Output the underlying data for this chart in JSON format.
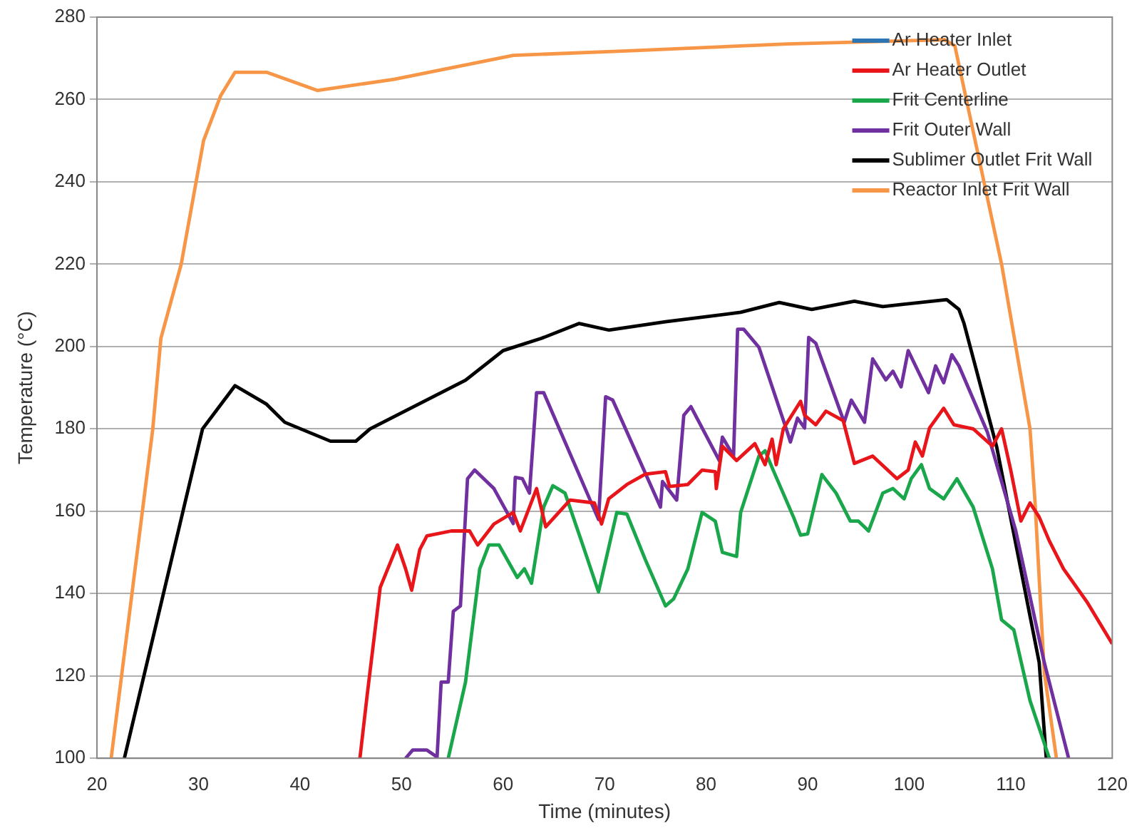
{
  "chart_data": {
    "type": "line",
    "xlabel": "Time (minutes)",
    "ylabel": "Temperature (°C)",
    "xlim": [
      20,
      120
    ],
    "xticks": [
      20,
      30,
      40,
      50,
      60,
      70,
      80,
      90,
      100,
      110,
      120
    ],
    "ylim": [
      100,
      280
    ],
    "yticks": [
      100,
      120,
      140,
      160,
      180,
      200,
      220,
      240,
      260,
      280
    ],
    "grid": "y",
    "legend": "top right",
    "series": [
      {
        "name": "Ar Heater Inlet",
        "color": "#2e75b6"
      },
      {
        "name": "Ar Heater Outlet",
        "color": "#e8161a",
        "x": [
          45.9,
          46.6,
          47.9,
          49.6,
          50.4,
          51,
          51.8,
          52.5,
          54.9,
          56.7,
          57.5,
          59.1,
          61,
          61.7,
          63.3,
          64.2,
          66.6,
          69,
          69.7,
          70.4,
          72.2,
          74,
          76,
          76.4,
          78.2,
          79.6,
          80.9,
          81,
          81.6,
          83,
          84.8,
          85.8,
          86.5,
          86.9,
          87.6,
          89.3,
          89.7,
          90.8,
          91.8,
          93.5,
          94.6,
          96.4,
          98.8,
          99.9,
          100.6,
          101.3,
          102,
          103.4,
          104.4,
          106.3,
          108.2,
          109.1,
          110,
          111,
          111.9,
          112.8,
          113.8,
          115.2,
          117.5,
          120
        ],
        "values": [
          100,
          115,
          141.5,
          151.8,
          146,
          140.8,
          150.7,
          154,
          155.2,
          155.2,
          151.8,
          156.9,
          159.7,
          155.2,
          165.5,
          156.2,
          162.7,
          162,
          156.9,
          163,
          166.5,
          169,
          169.6,
          166,
          166.5,
          170,
          169.6,
          165.5,
          175.8,
          172.3,
          176.4,
          171.3,
          177.5,
          171.3,
          180,
          186.7,
          183.3,
          181,
          184.3,
          182,
          171.6,
          173.4,
          167.9,
          170,
          176.8,
          173.4,
          180.2,
          185,
          181,
          180,
          175.8,
          180,
          170,
          157.6,
          162,
          158.6,
          152.8,
          146,
          138,
          127.8
        ]
      },
      {
        "name": "Frit Centerline",
        "color": "#1aa64a",
        "x": [
          54.6,
          56.3,
          57.7,
          58.6,
          59.6,
          61.4,
          62.1,
          62.8,
          64,
          64.9,
          66.1,
          68,
          69.4,
          71.2,
          72.2,
          74,
          76,
          76.8,
          78.2,
          79.6,
          80.9,
          81.6,
          83,
          83.4,
          85.2,
          85.8,
          86.6,
          88.6,
          89.3,
          90,
          91.4,
          92.8,
          94.2,
          95,
          96,
          97.4,
          98.4,
          99.5,
          100.2,
          101.2,
          102,
          103.4,
          104.7,
          106.3,
          108.2,
          109.1,
          110.3,
          111.9,
          113.8
        ],
        "values": [
          100,
          118.5,
          146,
          151.8,
          151.8,
          143.9,
          146,
          142.5,
          161,
          166.2,
          164.4,
          150.7,
          140.4,
          159.7,
          159.3,
          148.3,
          137,
          138.7,
          146,
          159.7,
          157.6,
          150,
          149,
          159.7,
          173.4,
          174.7,
          170,
          158.6,
          154.2,
          154.5,
          168.9,
          164.4,
          157.6,
          157.6,
          155.2,
          164.4,
          165.5,
          163,
          167.9,
          171.3,
          165.5,
          163,
          167.9,
          161,
          146,
          133.6,
          131.2,
          114,
          100
        ]
      },
      {
        "name": "Frit Outer Wall",
        "color": "#7030a0",
        "x": [
          50.4,
          51.1,
          52.5,
          53.5,
          53.9,
          54.6,
          55.1,
          55.8,
          56.5,
          57.2,
          59.1,
          61,
          61.2,
          61.9,
          62.6,
          63.3,
          64,
          69.4,
          70.1,
          70.8,
          75.5,
          75.7,
          77.1,
          77.8,
          78.5,
          81.3,
          81.6,
          82.7,
          83.1,
          83.7,
          85.2,
          88,
          88.3,
          89,
          89.7,
          90.1,
          90.8,
          93.6,
          94.3,
          95.6,
          96.4,
          97.7,
          98.4,
          99.2,
          99.9,
          101.9,
          102.6,
          103.4,
          104.2,
          104.9,
          107.7,
          110.5,
          113.3,
          115.7
        ],
        "values": [
          100,
          102,
          102,
          100.3,
          118.5,
          118.5,
          135.7,
          137,
          167.9,
          170,
          165.5,
          157,
          168.2,
          167.9,
          164.4,
          188.8,
          188.8,
          158,
          187.8,
          187,
          161,
          167.2,
          162.7,
          183.3,
          185.4,
          172.3,
          178,
          173.4,
          204.2,
          204.2,
          199.8,
          179.2,
          176.8,
          182.6,
          180.2,
          202.2,
          200.8,
          181.6,
          187,
          181.6,
          197,
          191.9,
          194,
          190.2,
          199,
          188.8,
          195.3,
          191.2,
          198,
          195.3,
          179.2,
          155.2,
          123.3,
          100
        ]
      },
      {
        "name": "Sublimer Outlet Frit Wall",
        "color": "#000000",
        "x": [
          22.7,
          30.4,
          33.6,
          36.7,
          38.5,
          43,
          45.5,
          46.9,
          56.3,
          60,
          63.8,
          67.5,
          70.4,
          76,
          83.4,
          87.2,
          90.4,
          94.6,
          97.4,
          103.7,
          104.9,
          105.4,
          108.6,
          112.8,
          113.5
        ],
        "values": [
          100,
          180,
          190.5,
          186,
          181.6,
          177,
          177,
          180,
          191.8,
          199,
          202,
          205.6,
          204,
          206,
          208.3,
          210.7,
          209,
          211,
          209.7,
          211.4,
          209,
          205.6,
          175.8,
          123.3,
          100
        ]
      },
      {
        "name": "Reactor Inlet Frit Wall",
        "color": "#f79646",
        "x": [
          21.4,
          25.5,
          26.3,
          28.3,
          30.5,
          32.2,
          33.6,
          36.7,
          41.7,
          49.3,
          61,
          72.2,
          88,
          103.5,
          104.5,
          109.1,
          111.9,
          112.4,
          113.3,
          114.5
        ],
        "values": [
          100,
          180,
          202,
          220,
          250,
          261,
          266.6,
          266.6,
          262.2,
          264.9,
          270.7,
          271.8,
          273.5,
          274.5,
          273,
          220,
          180,
          162,
          121,
          100
        ]
      }
    ]
  }
}
